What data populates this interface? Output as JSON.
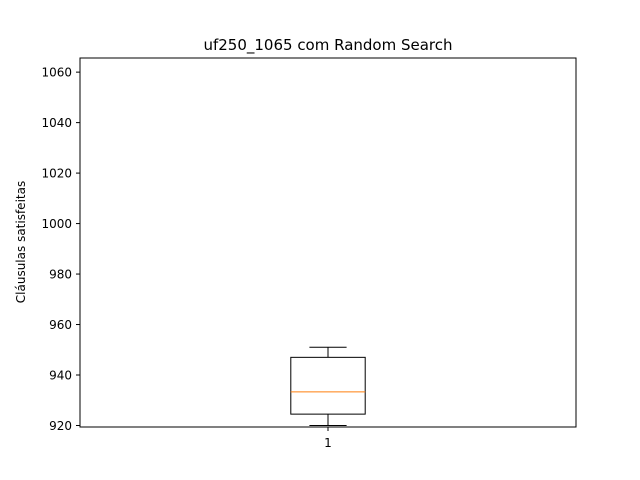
{
  "chart_data": {
    "type": "boxplot",
    "title": "uf250_1065 com Random Search",
    "xlabel": "",
    "ylabel": "Cláusulas satisfeitas",
    "ylim": [
      919.4,
      1065.6
    ],
    "yticks": [
      920,
      940,
      960,
      980,
      1000,
      1020,
      1040,
      1060
    ],
    "categories": [
      "1"
    ],
    "boxes": [
      {
        "category": "1",
        "whisker_low": 920,
        "q1": 924.5,
        "median": 933.3,
        "q3": 947,
        "whisker_high": 951
      }
    ],
    "grid": false,
    "colors": {
      "box": "#000000",
      "median": "#ff7f0e",
      "axes": "#000000",
      "background": "#ffffff"
    }
  }
}
